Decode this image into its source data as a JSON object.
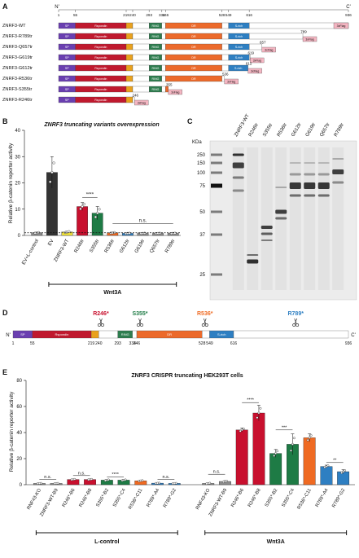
{
  "panels": {
    "A": "A",
    "B": "B",
    "C": "C",
    "D": "D",
    "E": "E"
  },
  "colors": {
    "sp": "#6a3fb0",
    "rspondin": "#c0192e",
    "tm": "#e9a11d",
    "ring": "#2e7d4f",
    "dr": "#ec6a2b",
    "srich": "#2e7fc2",
    "flag": "#f4b6c2",
    "plain": "#ffffff",
    "gray": "#8c8c8c",
    "dark": "#333333",
    "yellow": "#f3e53a",
    "red": "#c8102e",
    "green": "#1e7b45",
    "orange": "#ef6a22",
    "blue": "#2e7fc2"
  },
  "panelA": {
    "n_term": "N'",
    "c_term": "C'",
    "positions": [
      "1",
      "55",
      "219",
      "240",
      "293",
      "334",
      "346",
      "528",
      "549",
      "616",
      "936"
    ],
    "domain_labels": {
      "sp": "SP",
      "rspondin": "Rspondin",
      "tm": "TM",
      "ring": "RING",
      "dr": "DR",
      "srich": "S-rich",
      "flag": "3xFlag"
    },
    "constructs": [
      {
        "name": "ZNRF3-WT",
        "end": 936,
        "label": ""
      },
      {
        "name": "ZNRF3-R789tr",
        "end": 789,
        "label": "789"
      },
      {
        "name": "ZNRF3-Q657tr",
        "end": 657,
        "label": "657"
      },
      {
        "name": "ZNRF3-G619tr",
        "end": 619,
        "label": "619"
      },
      {
        "name": "ZNRF3-G612tr",
        "end": 612,
        "label": "612"
      },
      {
        "name": "ZNRF3-R536tr",
        "end": 536,
        "label": "536"
      },
      {
        "name": "ZNRF3-S355tr",
        "end": 355,
        "label": "355"
      },
      {
        "name": "ZNRF3-R246tr",
        "end": 246,
        "label": "246"
      }
    ]
  },
  "panelB": {
    "title": "ZNRF3 truncating variants overexpression",
    "ylabel": "Relative β-catenin reporter activity",
    "group_label": "Wnt3A",
    "sig1": "****",
    "sig2": "n.s."
  },
  "chart_data": [
    {
      "type": "bar",
      "title": "ZNRF3 truncating variants overexpression",
      "ylabel": "Relative β-catenin reporter activity",
      "categories": [
        "EV+L-control",
        "EV",
        "ZNRF3-WT",
        "R246tr",
        "S355tr",
        "R536tr",
        "G612tr",
        "G619tr",
        "Q657tr",
        "R789tr"
      ],
      "values": [
        1,
        24,
        1.3,
        11,
        8.5,
        1,
        0.8,
        0.8,
        0.8,
        0.8
      ],
      "errors": [
        0.2,
        6,
        0.3,
        1.5,
        2.5,
        0.2,
        0.1,
        0.1,
        0.1,
        0.1
      ],
      "ylim": [
        0,
        40
      ],
      "yticks": [
        0,
        10,
        20,
        30,
        40
      ],
      "colors": [
        "#8c8c8c",
        "#333333",
        "#f3e53a",
        "#c8102e",
        "#1e7b45",
        "#ef6a22",
        "#2e7fc2",
        "#8c8c8c",
        "#8c8c8c",
        "#8c8c8c"
      ]
    },
    {
      "type": "bar",
      "title": "ZNRF3 CRISPR truncating HEK293T cells",
      "ylabel": "Relative β-catenin reporter activity",
      "categories": [
        "RNF43-KO",
        "ZNRF3-WT-B9",
        "R246*-B6",
        "R246*-B8",
        "S355*-B2",
        "S355*-C4",
        "R536*-C11",
        "R789*-A4",
        "R789*-G2",
        "RNF43-KO",
        "ZNRF3-WT-B9",
        "R246*-B6",
        "R246*-B8",
        "S355*-B2",
        "S355*-C4",
        "R536*-C11",
        "R789*-A4",
        "R789*-G2"
      ],
      "values": [
        1,
        1,
        4,
        4,
        3.5,
        3.5,
        3,
        1.2,
        1,
        1,
        2.5,
        42,
        55,
        24,
        31,
        36,
        14,
        10
      ],
      "errors": [
        0.2,
        0.2,
        0.3,
        0.3,
        0.5,
        0.5,
        0.4,
        0.2,
        0.2,
        0.4,
        0.6,
        1.5,
        6,
        3,
        8,
        3,
        1,
        1.5
      ],
      "ylim": [
        0,
        80
      ],
      "yticks": [
        0,
        20,
        40,
        60,
        80
      ],
      "groups": [
        {
          "name": "L-control",
          "range": [
            0,
            8
          ]
        },
        {
          "name": "Wnt3A",
          "range": [
            9,
            17
          ]
        }
      ],
      "colors": [
        "#8c8c8c",
        "#8c8c8c",
        "#c8102e",
        "#c8102e",
        "#1e7b45",
        "#1e7b45",
        "#ef6a22",
        "#2e7fc2",
        "#2e7fc2",
        "#8c8c8c",
        "#8c8c8c",
        "#c8102e",
        "#c8102e",
        "#1e7b45",
        "#1e7b45",
        "#ef6a22",
        "#2e7fc2",
        "#2e7fc2"
      ]
    }
  ],
  "panelC": {
    "kda": "KDa",
    "markers": [
      "250",
      "150",
      "100",
      "75",
      "50",
      "37",
      "25"
    ],
    "lanes": [
      "ZNRF3-WT",
      "R246tr",
      "S355tr",
      "R536tr",
      "G612tr",
      "G619tr",
      "Q657tr",
      "R789tr"
    ]
  },
  "panelD": {
    "cuts": [
      {
        "label": "R246*",
        "pos": 246,
        "color": "#c8102e"
      },
      {
        "label": "S355*",
        "pos": 355,
        "color": "#1e7b45"
      },
      {
        "label": "R536*",
        "pos": 536,
        "color": "#ef6a22"
      },
      {
        "label": "R789*",
        "pos": 789,
        "color": "#2e7fc2"
      }
    ],
    "positions": [
      "1",
      "55",
      "219",
      "240",
      "293",
      "334",
      "346",
      "528",
      "549",
      "616",
      "936"
    ]
  },
  "panelE": {
    "title": "ZNRF3 CRISPR truncating HEK293T cells",
    "ylabel": "Relative β-catenin reporter activity",
    "group1": "L-control",
    "group2": "Wnt3A",
    "sigs_left": [
      "n.s.",
      "n.s.",
      "****",
      "n.s."
    ],
    "sigs_right": [
      "n.s.",
      "****",
      "***",
      "**"
    ]
  }
}
